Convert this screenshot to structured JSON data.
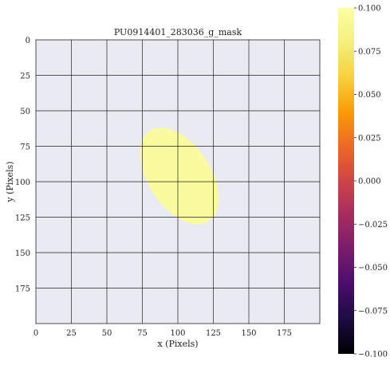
{
  "chart_data": {
    "type": "heatmap",
    "title": "PU0914401_283036_g_mask",
    "xlabel": "x (Pixels)",
    "ylabel": "y (Pixels)",
    "xlim": [
      0,
      200
    ],
    "ylim": [
      200,
      0
    ],
    "x_ticks": [
      0,
      25,
      50,
      75,
      100,
      125,
      150,
      175
    ],
    "y_ticks": [
      0,
      25,
      50,
      75,
      100,
      125,
      150,
      175
    ],
    "grid": true,
    "background_color": "#eaeaf2",
    "mask_region": {
      "shape": "ellipse",
      "center_x": 101,
      "center_y": 96,
      "semi_major": 38,
      "semi_minor": 22,
      "angle_deg": 57,
      "value": 0.1
    },
    "colorbar": {
      "colormap": "inferno",
      "min": -0.1,
      "max": 0.1,
      "ticks": [
        0.1,
        0.075,
        0.05,
        0.025,
        0.0,
        -0.025,
        -0.05,
        -0.075,
        -0.1
      ],
      "tick_labels": [
        "0.100",
        "0.075",
        "0.050",
        "0.025",
        "0.000",
        "−0.025",
        "−0.050",
        "−0.075",
        "−0.100"
      ]
    },
    "colors": {
      "mask_fill": "#f9fb9e",
      "grid_line": "#222222"
    }
  }
}
